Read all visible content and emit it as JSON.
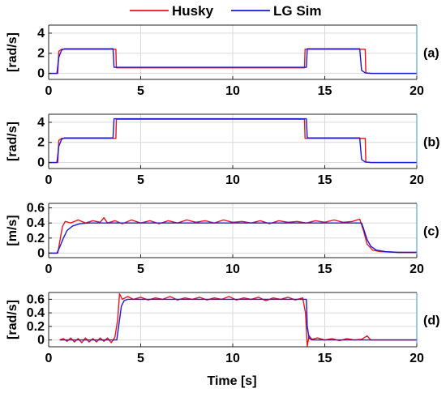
{
  "legend": [
    {
      "name": "Husky",
      "color": "#e8141c"
    },
    {
      "name": "LG Sim",
      "color": "#1a1ad6"
    }
  ],
  "xlabel": "Time [s]",
  "chart_data": [
    {
      "type": "line",
      "panel_label": "(a)",
      "ylabel": "[rad/s]",
      "xlim": [
        0,
        20
      ],
      "ylim": [
        -0.6,
        4.8
      ],
      "xticks": [
        0,
        5,
        10,
        15,
        20
      ],
      "yticks": [
        0,
        2,
        4
      ],
      "grid": true,
      "series": [
        {
          "name": "Husky",
          "points": [
            [
              0,
              0
            ],
            [
              0.5,
              0
            ],
            [
              0.55,
              2.2
            ],
            [
              0.7,
              2.4
            ],
            [
              3.65,
              2.4
            ],
            [
              3.68,
              0.55
            ],
            [
              13.9,
              0.55
            ],
            [
              13.93,
              2.4
            ],
            [
              17.2,
              2.4
            ],
            [
              17.23,
              0.05
            ],
            [
              17.5,
              0
            ],
            [
              20,
              0
            ]
          ]
        },
        {
          "name": "LG Sim",
          "points": [
            [
              0,
              0
            ],
            [
              0.45,
              0
            ],
            [
              0.55,
              1.6
            ],
            [
              0.7,
              2.3
            ],
            [
              0.85,
              2.45
            ],
            [
              3.5,
              2.45
            ],
            [
              3.55,
              0.6
            ],
            [
              14.0,
              0.6
            ],
            [
              14.05,
              2.45
            ],
            [
              16.9,
              2.45
            ],
            [
              17.0,
              0.3
            ],
            [
              17.2,
              0.05
            ],
            [
              17.5,
              0
            ],
            [
              20,
              0
            ]
          ]
        }
      ]
    },
    {
      "type": "line",
      "panel_label": "(b)",
      "ylabel": "[rad/s]",
      "xlim": [
        0,
        20
      ],
      "ylim": [
        -0.6,
        4.8
      ],
      "xticks": [
        0,
        5,
        10,
        15,
        20
      ],
      "yticks": [
        0,
        2,
        4
      ],
      "grid": true,
      "series": [
        {
          "name": "Husky",
          "points": [
            [
              0,
              0
            ],
            [
              0.5,
              0
            ],
            [
              0.55,
              2.2
            ],
            [
              0.7,
              2.4
            ],
            [
              3.65,
              2.4
            ],
            [
              3.68,
              4.3
            ],
            [
              13.9,
              4.3
            ],
            [
              13.93,
              2.4
            ],
            [
              17.2,
              2.4
            ],
            [
              17.23,
              0.05
            ],
            [
              17.5,
              0
            ],
            [
              20,
              0
            ]
          ]
        },
        {
          "name": "LG Sim",
          "points": [
            [
              0,
              0
            ],
            [
              0.45,
              0
            ],
            [
              0.55,
              1.6
            ],
            [
              0.7,
              2.3
            ],
            [
              0.85,
              2.45
            ],
            [
              3.5,
              2.45
            ],
            [
              3.55,
              4.35
            ],
            [
              14.0,
              4.35
            ],
            [
              14.05,
              2.45
            ],
            [
              16.9,
              2.45
            ],
            [
              17.0,
              0.3
            ],
            [
              17.2,
              0.05
            ],
            [
              17.5,
              0
            ],
            [
              20,
              0
            ]
          ]
        }
      ]
    },
    {
      "type": "line",
      "panel_label": "(c)",
      "ylabel": "[m/s]",
      "xlim": [
        0,
        20
      ],
      "ylim": [
        -0.06,
        0.66
      ],
      "xticks": [
        0,
        5,
        10,
        15,
        20
      ],
      "yticks": [
        0,
        0.2,
        0.4,
        0.6
      ],
      "grid": true,
      "series": [
        {
          "name": "Husky",
          "points": [
            [
              0,
              0
            ],
            [
              0.5,
              0
            ],
            [
              0.6,
              0.15
            ],
            [
              0.75,
              0.35
            ],
            [
              0.9,
              0.42
            ],
            [
              1.2,
              0.4
            ],
            [
              1.6,
              0.44
            ],
            [
              2.0,
              0.4
            ],
            [
              2.4,
              0.43
            ],
            [
              2.8,
              0.41
            ],
            [
              3.0,
              0.47
            ],
            [
              3.2,
              0.4
            ],
            [
              3.6,
              0.43
            ],
            [
              4.0,
              0.39
            ],
            [
              4.5,
              0.44
            ],
            [
              5.0,
              0.4
            ],
            [
              5.5,
              0.43
            ],
            [
              6.0,
              0.39
            ],
            [
              6.5,
              0.43
            ],
            [
              7.0,
              0.4
            ],
            [
              7.5,
              0.44
            ],
            [
              8.0,
              0.41
            ],
            [
              8.5,
              0.43
            ],
            [
              9.0,
              0.4
            ],
            [
              9.5,
              0.44
            ],
            [
              10.0,
              0.41
            ],
            [
              10.5,
              0.42
            ],
            [
              11.0,
              0.4
            ],
            [
              11.5,
              0.43
            ],
            [
              12.0,
              0.39
            ],
            [
              12.5,
              0.43
            ],
            [
              13.0,
              0.41
            ],
            [
              13.5,
              0.42
            ],
            [
              14.0,
              0.4
            ],
            [
              14.5,
              0.43
            ],
            [
              15.0,
              0.41
            ],
            [
              15.5,
              0.44
            ],
            [
              16.0,
              0.41
            ],
            [
              16.5,
              0.42
            ],
            [
              16.9,
              0.45
            ],
            [
              17.1,
              0.3
            ],
            [
              17.3,
              0.12
            ],
            [
              17.6,
              0.04
            ],
            [
              18.0,
              0.02
            ],
            [
              19.0,
              0.01
            ],
            [
              20,
              0.01
            ]
          ]
        },
        {
          "name": "LG Sim",
          "points": [
            [
              0,
              0
            ],
            [
              0.45,
              0
            ],
            [
              0.6,
              0.08
            ],
            [
              0.8,
              0.2
            ],
            [
              1.0,
              0.3
            ],
            [
              1.3,
              0.36
            ],
            [
              1.7,
              0.39
            ],
            [
              2.2,
              0.4
            ],
            [
              17.0,
              0.4
            ],
            [
              17.1,
              0.33
            ],
            [
              17.3,
              0.18
            ],
            [
              17.5,
              0.09
            ],
            [
              17.8,
              0.04
            ],
            [
              18.3,
              0.02
            ],
            [
              19.0,
              0.01
            ],
            [
              20,
              0.01
            ]
          ]
        }
      ]
    },
    {
      "type": "line",
      "panel_label": "(d)",
      "ylabel": "[rad/s]",
      "xlim": [
        0,
        20
      ],
      "ylim": [
        -0.1,
        0.7
      ],
      "xticks": [
        0,
        5,
        10,
        15,
        20
      ],
      "yticks": [
        0,
        0.2,
        0.4,
        0.6
      ],
      "grid": true,
      "series": [
        {
          "name": "Husky",
          "points": [
            [
              0.6,
              0
            ],
            [
              0.8,
              0.02
            ],
            [
              1.0,
              -0.02
            ],
            [
              1.2,
              0.03
            ],
            [
              1.4,
              -0.03
            ],
            [
              1.6,
              0.02
            ],
            [
              1.8,
              -0.04
            ],
            [
              2.0,
              0.03
            ],
            [
              2.2,
              -0.03
            ],
            [
              2.4,
              0.02
            ],
            [
              2.6,
              -0.03
            ],
            [
              2.8,
              0.03
            ],
            [
              3.0,
              -0.02
            ],
            [
              3.2,
              0.03
            ],
            [
              3.4,
              -0.04
            ],
            [
              3.6,
              0.04
            ],
            [
              3.75,
              0.3
            ],
            [
              3.85,
              0.68
            ],
            [
              4.0,
              0.6
            ],
            [
              4.3,
              0.64
            ],
            [
              4.6,
              0.6
            ],
            [
              5.0,
              0.63
            ],
            [
              5.4,
              0.59
            ],
            [
              5.8,
              0.62
            ],
            [
              6.2,
              0.6
            ],
            [
              6.6,
              0.64
            ],
            [
              7.0,
              0.59
            ],
            [
              7.4,
              0.62
            ],
            [
              7.8,
              0.6
            ],
            [
              8.2,
              0.63
            ],
            [
              8.6,
              0.59
            ],
            [
              9.0,
              0.62
            ],
            [
              9.4,
              0.6
            ],
            [
              9.8,
              0.64
            ],
            [
              10.2,
              0.59
            ],
            [
              10.6,
              0.62
            ],
            [
              11.0,
              0.6
            ],
            [
              11.4,
              0.63
            ],
            [
              11.8,
              0.58
            ],
            [
              12.2,
              0.62
            ],
            [
              12.6,
              0.6
            ],
            [
              13.0,
              0.63
            ],
            [
              13.4,
              0.59
            ],
            [
              13.8,
              0.62
            ],
            [
              13.95,
              0.4
            ],
            [
              14.05,
              -0.09
            ],
            [
              14.15,
              0.06
            ],
            [
              14.3,
              0.01
            ],
            [
              14.6,
              0.03
            ],
            [
              15.0,
              0.0
            ],
            [
              15.4,
              0.02
            ],
            [
              15.8,
              -0.01
            ],
            [
              16.2,
              0.02
            ],
            [
              16.6,
              0.0
            ],
            [
              17.0,
              0.01
            ],
            [
              17.3,
              0.06
            ],
            [
              17.5,
              0.0
            ],
            [
              20,
              0
            ]
          ]
        },
        {
          "name": "LG Sim",
          "points": [
            [
              0.6,
              0
            ],
            [
              3.7,
              0
            ],
            [
              3.8,
              0.2
            ],
            [
              3.95,
              0.5
            ],
            [
              4.1,
              0.58
            ],
            [
              4.3,
              0.6
            ],
            [
              14.0,
              0.6
            ],
            [
              14.05,
              0.2
            ],
            [
              14.15,
              0.03
            ],
            [
              14.3,
              0.0
            ],
            [
              20,
              0
            ]
          ]
        }
      ]
    }
  ]
}
